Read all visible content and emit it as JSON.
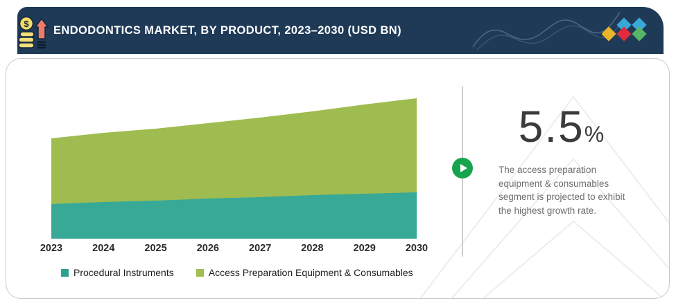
{
  "header": {
    "title": "ENDODONTICS MARKET, BY PRODUCT, 2023–2030 (USD BN)",
    "bg_color": "#1f3a57",
    "icon": "coins-growth-arrow-icon",
    "logo_diamond_colors": [
      "#e9b32a",
      "#39a8d9",
      "#e02b3f",
      "#39a8d9",
      "#55b766"
    ]
  },
  "chart_data": {
    "type": "area",
    "stacked": true,
    "x": [
      "2023",
      "2024",
      "2025",
      "2026",
      "2027",
      "2028",
      "2029",
      "2030"
    ],
    "series": [
      {
        "name": "Procedural Instruments",
        "color": "#38a996",
        "values": [
          0.5,
          0.53,
          0.55,
          0.58,
          0.6,
          0.63,
          0.65,
          0.67
        ]
      },
      {
        "name": "Access Preparation Equipment & Consumables",
        "color": "#9fbc50",
        "values": [
          0.95,
          1.0,
          1.04,
          1.09,
          1.15,
          1.21,
          1.29,
          1.36
        ]
      }
    ],
    "title": "ENDODONTICS MARKET, BY PRODUCT, 2023–2030 (USD BN)",
    "xlabel": "",
    "ylabel": "",
    "ylim": [
      0,
      2.25
    ],
    "y_axis_shown": false,
    "grid": false,
    "legend_position": "bottom"
  },
  "legend": [
    {
      "label": "Procedural Instruments",
      "color": "#2da191"
    },
    {
      "label": "Access Preparation Equipment & Consumables",
      "color": "#a2bd52"
    }
  ],
  "stat": {
    "value": "5.5",
    "unit": "%",
    "description": "The access preparation equipment & consumables segment is projected to exhibit the highest growth rate."
  }
}
